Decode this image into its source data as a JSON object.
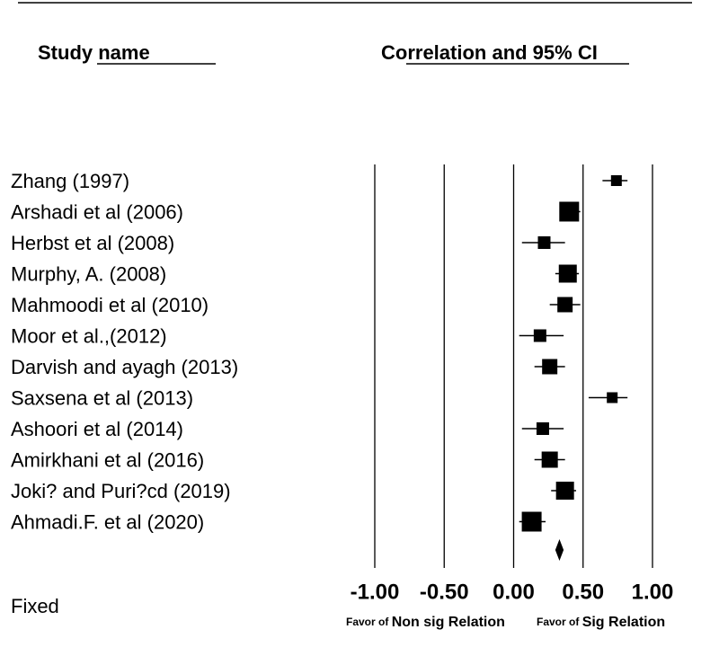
{
  "chart_data": {
    "type": "forest",
    "column_headers": [
      "Study name",
      "Correlation and 95% CI"
    ],
    "studies": [
      {
        "name": "Zhang (1997)",
        "estimate": 0.74,
        "lower": 0.64,
        "upper": 0.82,
        "weight": 3.6
      },
      {
        "name": "Arshadi et al (2006)",
        "estimate": 0.4,
        "lower": 0.33,
        "upper": 0.48,
        "weight": 12.1
      },
      {
        "name": "Herbst et al (2008)",
        "estimate": 0.22,
        "lower": 0.06,
        "upper": 0.37,
        "weight": 4.9
      },
      {
        "name": "Murphy, A. (2008)",
        "estimate": 0.39,
        "lower": 0.3,
        "upper": 0.47,
        "weight": 10
      },
      {
        "name": "Mahmoodi et al (2010)",
        "estimate": 0.37,
        "lower": 0.26,
        "upper": 0.48,
        "weight": 7.2
      },
      {
        "name": "Moor et al.,(2012)",
        "estimate": 0.19,
        "lower": 0.04,
        "upper": 0.36,
        "weight": 4.9
      },
      {
        "name": "Darvish and ayagh (2013)",
        "estimate": 0.26,
        "lower": 0.15,
        "upper": 0.37,
        "weight": 7.2
      },
      {
        "name": "Saxsena et al (2013)",
        "estimate": 0.71,
        "lower": 0.54,
        "upper": 0.82,
        "weight": 3.6
      },
      {
        "name": "Ashoori et al (2014)",
        "estimate": 0.21,
        "lower": 0.06,
        "upper": 0.36,
        "weight": 4.9
      },
      {
        "name": "Amirkhani et al (2016)",
        "estimate": 0.26,
        "lower": 0.15,
        "upper": 0.37,
        "weight": 8.1
      },
      {
        "name": "Joki? and Puri?cd (2019)",
        "estimate": 0.37,
        "lower": 0.27,
        "upper": 0.45,
        "weight": 10
      },
      {
        "name": "Ahmadi.F. et al (2020)",
        "estimate": 0.13,
        "lower": 0.04,
        "upper": 0.23,
        "weight": 12.1
      }
    ],
    "summary": {
      "name": "Fixed",
      "estimate": 0.33,
      "lower": 0.3,
      "upper": 0.36
    },
    "xlim": [
      -1,
      1
    ],
    "xticks": [
      {
        "value": -1,
        "label": "-1.00"
      },
      {
        "value": -0.5,
        "label": "-0.50"
      },
      {
        "value": 0,
        "label": "0.00"
      },
      {
        "value": 0.5,
        "label": "0.50"
      },
      {
        "value": 1,
        "label": "1.00"
      }
    ],
    "favor_left": {
      "prefix": "Favor of",
      "emphasis": "Non sig Relation"
    },
    "favor_right": {
      "prefix": "Favor of",
      "emphasis": "Sig Relation"
    },
    "color": "#000000"
  }
}
